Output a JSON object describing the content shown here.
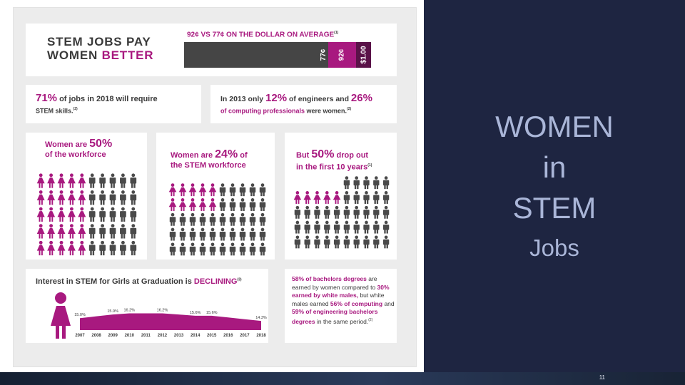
{
  "slide": {
    "page_number": "11"
  },
  "title_panel": {
    "line1": "WOMEN",
    "line2": "in",
    "line3": "STEM",
    "line4": "Jobs"
  },
  "infographic": {
    "pay": {
      "headline_line1": "STEM JOBS PAY",
      "headline_line2_a": "WOMEN ",
      "headline_line2_b": "BETTER",
      "comparison": "92¢ VS 77¢ ON THE DOLLAR ON AVERAGE",
      "comparison_ref": "(1)",
      "bar_labels": [
        "77¢",
        "92¢",
        "$1.00"
      ],
      "bar_values": [
        0.77,
        0.92,
        1.0
      ],
      "bar_colors": [
        "#454545",
        "#a8197f",
        "#5a1248"
      ]
    },
    "skills": {
      "pct": "71%",
      "text_a": " of jobs in 2018 will require",
      "text_b": "STEM skills.",
      "ref": "(2)"
    },
    "engineers": {
      "text_a": "In 2013 only ",
      "pct1": "12%",
      "text_b": " of engineers and ",
      "pct2": "26%",
      "text_c": "of computing professionals",
      "text_d": " were women.",
      "ref": "(2)"
    },
    "workforce": {
      "text_a": "Women are ",
      "pct": "50%",
      "text_b": "of the workforce",
      "women": 5,
      "total": 10,
      "rows": 5
    },
    "stem_workforce": {
      "text_a": "Women are ",
      "pct": "24%",
      "text_b": " of",
      "text_c": "the STEM workforce",
      "women_rows": [
        5,
        5,
        0,
        0,
        0
      ],
      "total": 10,
      "rows": 5
    },
    "dropout": {
      "text_a": "But ",
      "pct": "50%",
      "text_b": " drop out",
      "text_c": "in the first 10 years",
      "ref": "(1)",
      "row_counts": [
        5,
        10,
        10,
        10,
        10
      ],
      "women_rows": [
        0,
        5,
        0,
        0,
        0
      ],
      "total": 10
    },
    "interest": {
      "text_a": "Interest in STEM for Girls at Graduation is ",
      "text_b": "DECLINING",
      "ref": "(3)"
    },
    "degrees": {
      "p1": "58% of bachelors degrees",
      "p2": " are earned by women compared to ",
      "p3": "30% earned by white males,",
      "p4": " but white males earned ",
      "p5": "56% of computing",
      "p6": " and ",
      "p7": "59% of engineering bachelors degrees",
      "p8": " in the same period.",
      "ref": "(2)"
    }
  },
  "chart_data": {
    "type": "area",
    "categories": [
      "2007",
      "2008",
      "2009",
      "2010",
      "2011",
      "2012",
      "2013",
      "2014",
      "2015",
      "2016",
      "2017",
      "2018"
    ],
    "values": [
      15.0,
      null,
      15.9,
      16.2,
      null,
      16.2,
      null,
      15.6,
      15.6,
      null,
      null,
      14.3
    ],
    "data_labels": [
      "15.0%",
      "",
      "15.9%",
      "16.2%",
      "",
      "16.2%",
      "",
      "15.6%",
      "15.6%",
      "",
      "",
      "14.3%"
    ],
    "ylim": [
      0,
      17
    ],
    "color": "#a8197f"
  }
}
